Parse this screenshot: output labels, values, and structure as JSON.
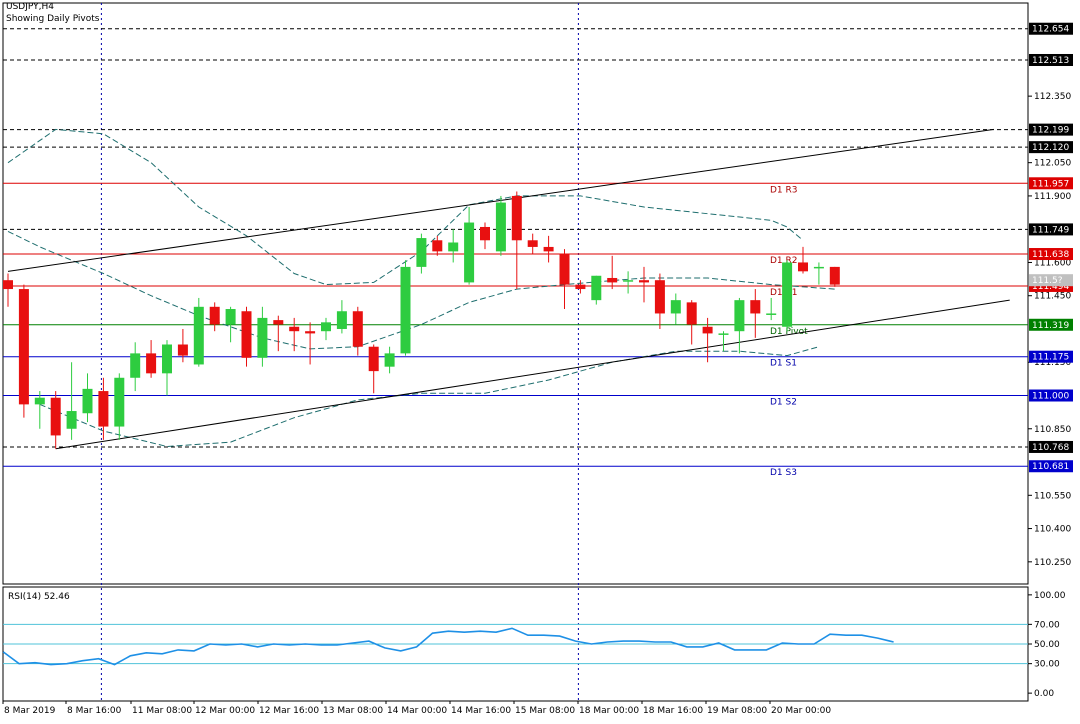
{
  "header": {
    "symbol": "USDJPY,H4",
    "subtitle": "Showing Daily Pivots"
  },
  "chart_data": [
    {
      "type": "candlestick",
      "ylim": [
        110.15,
        112.77
      ],
      "price_ticks": [
        "112.350",
        "112.050",
        "111.900",
        "111.600",
        "111.450",
        "111.150",
        "110.850",
        "110.550",
        "110.400",
        "110.250"
      ],
      "x_labels": [
        "8 Mar 2019",
        "8 Mar 16:00",
        "11 Mar 08:00",
        "12 Mar 00:00",
        "12 Mar 16:00",
        "13 Mar 08:00",
        "14 Mar 00:00",
        "14 Mar 16:00",
        "15 Mar 08:00",
        "18 Mar 00:00",
        "18 Mar 16:00",
        "19 Mar 08:00",
        "20 Mar 00:00"
      ],
      "candles": [
        {
          "o": 111.52,
          "h": 111.55,
          "l": 111.4,
          "c": 111.48
        },
        {
          "o": 111.48,
          "h": 111.5,
          "l": 110.9,
          "c": 110.96
        },
        {
          "o": 110.96,
          "h": 111.02,
          "l": 110.85,
          "c": 110.99
        },
        {
          "o": 110.99,
          "h": 111.02,
          "l": 110.76,
          "c": 110.82
        },
        {
          "o": 110.85,
          "h": 111.15,
          "l": 110.8,
          "c": 110.93
        },
        {
          "o": 110.92,
          "h": 111.1,
          "l": 110.88,
          "c": 111.03
        },
        {
          "o": 111.02,
          "h": 111.08,
          "l": 110.8,
          "c": 110.86
        },
        {
          "o": 110.86,
          "h": 111.1,
          "l": 110.8,
          "c": 111.08
        },
        {
          "o": 111.08,
          "h": 111.24,
          "l": 111.02,
          "c": 111.19
        },
        {
          "o": 111.19,
          "h": 111.25,
          "l": 111.08,
          "c": 111.1
        },
        {
          "o": 111.1,
          "h": 111.25,
          "l": 111.0,
          "c": 111.23
        },
        {
          "o": 111.23,
          "h": 111.3,
          "l": 111.15,
          "c": 111.18
        },
        {
          "o": 111.14,
          "h": 111.44,
          "l": 111.13,
          "c": 111.4
        },
        {
          "o": 111.4,
          "h": 111.42,
          "l": 111.29,
          "c": 111.32
        },
        {
          "o": 111.32,
          "h": 111.4,
          "l": 111.24,
          "c": 111.39
        },
        {
          "o": 111.38,
          "h": 111.4,
          "l": 111.13,
          "c": 111.17
        },
        {
          "o": 111.17,
          "h": 111.4,
          "l": 111.13,
          "c": 111.35
        },
        {
          "o": 111.34,
          "h": 111.36,
          "l": 111.2,
          "c": 111.32
        },
        {
          "o": 111.31,
          "h": 111.35,
          "l": 111.2,
          "c": 111.29
        },
        {
          "o": 111.29,
          "h": 111.33,
          "l": 111.14,
          "c": 111.28
        },
        {
          "o": 111.29,
          "h": 111.35,
          "l": 111.25,
          "c": 111.33
        },
        {
          "o": 111.3,
          "h": 111.43,
          "l": 111.28,
          "c": 111.38
        },
        {
          "o": 111.38,
          "h": 111.4,
          "l": 111.18,
          "c": 111.22
        },
        {
          "o": 111.22,
          "h": 111.23,
          "l": 111.01,
          "c": 111.11
        },
        {
          "o": 111.13,
          "h": 111.22,
          "l": 111.1,
          "c": 111.19
        },
        {
          "o": 111.19,
          "h": 111.61,
          "l": 111.18,
          "c": 111.58
        },
        {
          "o": 111.58,
          "h": 111.73,
          "l": 111.55,
          "c": 111.71
        },
        {
          "o": 111.7,
          "h": 111.72,
          "l": 111.63,
          "c": 111.65
        },
        {
          "o": 111.65,
          "h": 111.75,
          "l": 111.6,
          "c": 111.69
        },
        {
          "o": 111.51,
          "h": 111.85,
          "l": 111.5,
          "c": 111.78
        },
        {
          "o": 111.76,
          "h": 111.78,
          "l": 111.66,
          "c": 111.7
        },
        {
          "o": 111.65,
          "h": 111.9,
          "l": 111.63,
          "c": 111.87
        },
        {
          "o": 111.9,
          "h": 111.92,
          "l": 111.48,
          "c": 111.7
        },
        {
          "o": 111.7,
          "h": 111.73,
          "l": 111.64,
          "c": 111.67
        },
        {
          "o": 111.67,
          "h": 111.72,
          "l": 111.6,
          "c": 111.65
        },
        {
          "o": 111.64,
          "h": 111.66,
          "l": 111.39,
          "c": 111.5
        },
        {
          "o": 111.5,
          "h": 111.52,
          "l": 111.46,
          "c": 111.48
        },
        {
          "o": 111.43,
          "h": 111.54,
          "l": 111.41,
          "c": 111.54
        },
        {
          "o": 111.53,
          "h": 111.63,
          "l": 111.48,
          "c": 111.51
        },
        {
          "o": 111.52,
          "h": 111.56,
          "l": 111.46,
          "c": 111.52
        },
        {
          "o": 111.52,
          "h": 111.58,
          "l": 111.42,
          "c": 111.51
        },
        {
          "o": 111.52,
          "h": 111.55,
          "l": 111.3,
          "c": 111.37
        },
        {
          "o": 111.37,
          "h": 111.46,
          "l": 111.32,
          "c": 111.43
        },
        {
          "o": 111.42,
          "h": 111.43,
          "l": 111.23,
          "c": 111.32
        },
        {
          "o": 111.31,
          "h": 111.35,
          "l": 111.15,
          "c": 111.28
        },
        {
          "o": 111.28,
          "h": 111.29,
          "l": 111.2,
          "c": 111.28
        },
        {
          "o": 111.29,
          "h": 111.44,
          "l": 111.19,
          "c": 111.43
        },
        {
          "o": 111.43,
          "h": 111.48,
          "l": 111.26,
          "c": 111.37
        },
        {
          "o": 111.37,
          "h": 111.44,
          "l": 111.34,
          "c": 111.37
        },
        {
          "o": 111.31,
          "h": 111.61,
          "l": 111.29,
          "c": 111.6
        },
        {
          "o": 111.6,
          "h": 111.67,
          "l": 111.55,
          "c": 111.56
        },
        {
          "o": 111.58,
          "h": 111.6,
          "l": 111.5,
          "c": 111.58
        },
        {
          "o": 111.58,
          "h": 111.58,
          "l": 111.49,
          "c": 111.5
        }
      ],
      "moving_averages": [
        {
          "color": "#1e6e6e",
          "points": [
            [
              0,
              112.05
            ],
            [
              3,
              112.2
            ],
            [
              6,
              112.18
            ],
            [
              9,
              112.05
            ],
            [
              12,
              111.85
            ],
            [
              15,
              111.72
            ],
            [
              18,
              111.55
            ],
            [
              20,
              111.5
            ],
            [
              23,
              111.51
            ],
            [
              26,
              111.65
            ],
            [
              29,
              111.86
            ],
            [
              32,
              111.9
            ],
            [
              36,
              111.9
            ],
            [
              40,
              111.85
            ],
            [
              44,
              111.82
            ],
            [
              48,
              111.79
            ],
            [
              49,
              111.76
            ],
            [
              50,
              111.7
            ]
          ]
        },
        {
          "color": "#1e6e6e",
          "points": [
            [
              0,
              111.74
            ],
            [
              2,
              111.67
            ],
            [
              6,
              111.55
            ],
            [
              9,
              111.45
            ],
            [
              12,
              111.36
            ],
            [
              16,
              111.26
            ],
            [
              19,
              111.21
            ],
            [
              22,
              111.22
            ],
            [
              26,
              111.32
            ],
            [
              29,
              111.42
            ],
            [
              32,
              111.48
            ],
            [
              35,
              111.5
            ],
            [
              40,
              111.53
            ],
            [
              44,
              111.53
            ],
            [
              48,
              111.5
            ],
            [
              52,
              111.48
            ]
          ]
        },
        {
          "color": "#1e6e6e",
          "points": [
            [
              2,
              110.96
            ],
            [
              6,
              110.84
            ],
            [
              10,
              110.77
            ],
            [
              14,
              110.79
            ],
            [
              18,
              110.9
            ],
            [
              22,
              110.98
            ],
            [
              26,
              111.01
            ],
            [
              30,
              111.01
            ],
            [
              34,
              111.07
            ],
            [
              38,
              111.15
            ],
            [
              42,
              111.2
            ],
            [
              46,
              111.2
            ],
            [
              49,
              111.18
            ],
            [
              51,
              111.22
            ]
          ]
        }
      ],
      "trend_lines": [
        {
          "from": [
            0,
            111.56
          ],
          "to": [
            62,
            112.2
          ]
        },
        {
          "from": [
            3,
            110.76
          ],
          "to": [
            63,
            111.43
          ]
        }
      ],
      "pivots": [
        {
          "label": "D1 R3",
          "value": 111.957,
          "tag": "111.957",
          "color": "#dd0000"
        },
        {
          "label": "D1 R2",
          "value": 111.638,
          "tag": "111.638",
          "color": "#dd0000"
        },
        {
          "label": "D1 R1",
          "value": 111.494,
          "tag": "111.494",
          "color": "#dd0000"
        },
        {
          "label": "D1 Pivot",
          "value": 111.319,
          "tag": "111.319",
          "color": "#008000"
        },
        {
          "label": "D1 S1",
          "value": 111.175,
          "tag": "111.175",
          "color": "#0000cc"
        },
        {
          "label": "D1 S2",
          "value": 111.0,
          "tag": "111.000",
          "color": "#0000cc"
        },
        {
          "label": "D1 S3",
          "value": 110.681,
          "tag": "110.681",
          "color": "#0000cc"
        }
      ],
      "horizontal_levels": [
        {
          "value": 112.654,
          "tag": "112.654"
        },
        {
          "value": 112.513,
          "tag": "112.513"
        },
        {
          "value": 112.199,
          "tag": "112.199"
        },
        {
          "value": 112.12,
          "tag": "112.120"
        },
        {
          "value": 111.749,
          "tag": "111.749"
        },
        {
          "value": 110.768,
          "tag": "110.768"
        }
      ],
      "session_separators": [
        6,
        36
      ],
      "current_price": {
        "value": 111.52,
        "tag": "111.5?"
      },
      "colors": {
        "bull": "#2ecc40",
        "bear": "#e81010",
        "ma": "#1e6e6e",
        "axis": "#000000",
        "grid": "#000000"
      }
    },
    {
      "type": "line",
      "label": "RSI(14) 52.46",
      "ylim": [
        -8,
        108
      ],
      "ticks": [
        "100.00",
        "70.00",
        "50.00",
        "30.00",
        "0.00"
      ],
      "levels": [
        70,
        50,
        30
      ],
      "values": [
        42,
        30,
        31,
        29,
        30,
        33,
        35,
        29,
        38,
        41,
        40,
        44,
        43,
        50,
        49,
        50,
        47,
        50,
        49,
        50,
        49,
        49,
        51,
        53,
        46,
        43,
        47,
        61,
        63,
        62,
        63,
        62,
        66,
        59,
        59,
        58,
        53,
        50,
        52,
        53,
        53,
        52,
        52,
        47,
        47,
        51,
        44,
        44,
        44,
        51,
        50,
        50,
        60,
        59,
        59,
        56,
        52
      ],
      "color": "#1e90e6"
    }
  ]
}
